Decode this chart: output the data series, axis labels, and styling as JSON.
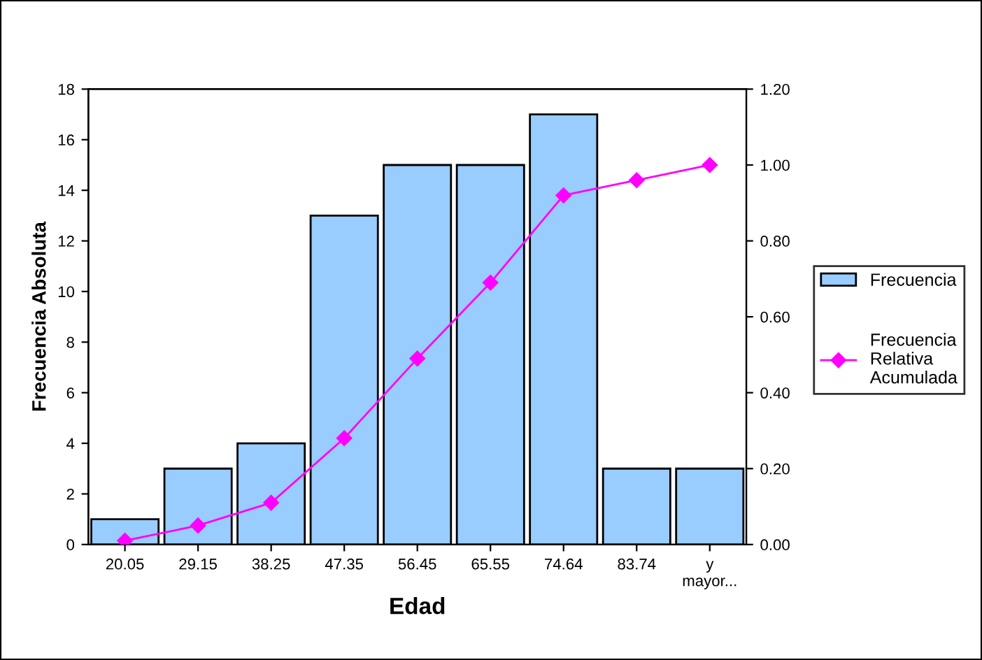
{
  "chart_data": {
    "type": "bar",
    "xlabel": "Edad",
    "ylabel": "Frecuencia Absoluta",
    "categories": [
      "20.05",
      "29.15",
      "38.25",
      "47.35",
      "56.45",
      "65.55",
      "74.64",
      "83.74",
      "y\nmayor..."
    ],
    "series": [
      {
        "name": "Frecuencia",
        "color": "#99ccff",
        "values": [
          1,
          3,
          4,
          13,
          15,
          15,
          17,
          3,
          3
        ]
      },
      {
        "name": "Frecuencia\nRelativa\nAcumulada",
        "type": "line",
        "axis": "y2",
        "color": "#ff00ff",
        "marker": "diamond",
        "values": [
          0.01,
          0.05,
          0.11,
          0.28,
          0.49,
          0.69,
          0.92,
          0.96,
          1.0
        ]
      }
    ],
    "ylim": [
      0,
      18
    ],
    "yticks": [
      0,
      2,
      4,
      6,
      8,
      10,
      12,
      14,
      16,
      18
    ],
    "y2lim": [
      0,
      1.2
    ],
    "y2ticks": [
      {
        "value": 0,
        "label": "0.00"
      },
      {
        "value": 0.2,
        "label": "0.20"
      },
      {
        "value": 0.4,
        "label": "0.40"
      },
      {
        "value": 0.6,
        "label": "0.60"
      },
      {
        "value": 0.8,
        "label": "0.80"
      },
      {
        "value": 1.0,
        "label": "1.00"
      },
      {
        "value": 1.2,
        "label": "1.20"
      }
    ],
    "grid": false,
    "legend": "right"
  }
}
